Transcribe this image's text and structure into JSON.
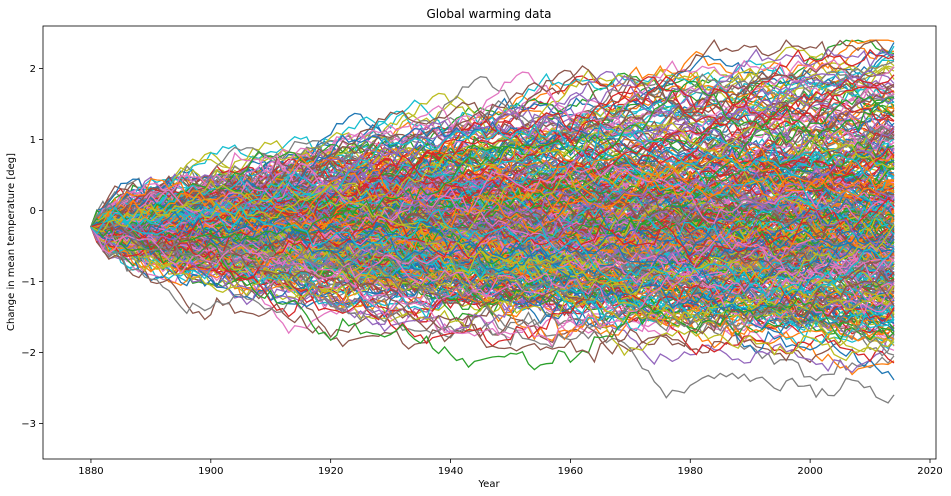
{
  "chart_data": {
    "type": "line",
    "title": "Global warming data",
    "xlabel": "Year",
    "ylabel": "Change in mean temperature [deg]",
    "xlim": [
      1872,
      2021
    ],
    "ylim": [
      -3.5,
      2.6
    ],
    "xticks": [
      1880,
      1900,
      1920,
      1940,
      1960,
      1980,
      2000,
      2020
    ],
    "yticks": [
      -3,
      -2,
      -1,
      0,
      1,
      2
    ],
    "xtick_labels": [
      "1880",
      "1900",
      "1920",
      "1940",
      "1960",
      "1980",
      "2000",
      "2020"
    ],
    "ytick_labels": [
      "−3",
      "−2",
      "−1",
      "0",
      "1",
      "2"
    ],
    "grid": false,
    "legend": "none",
    "x_start": 1880,
    "x_end": 2014,
    "start_value": -0.23,
    "series_colors": [
      "#1f77b4",
      "#ff7f0e",
      "#2ca02c",
      "#d62728",
      "#9467bd",
      "#8c564b",
      "#e377c2",
      "#7f7f7f",
      "#bcbd22",
      "#17becf"
    ],
    "series_description": "Hundreds of random-walk temperature trajectories starting at about -0.23 deg in 1880 and fanning out to roughly -3.2 to +2.4 deg by 2014"
  }
}
